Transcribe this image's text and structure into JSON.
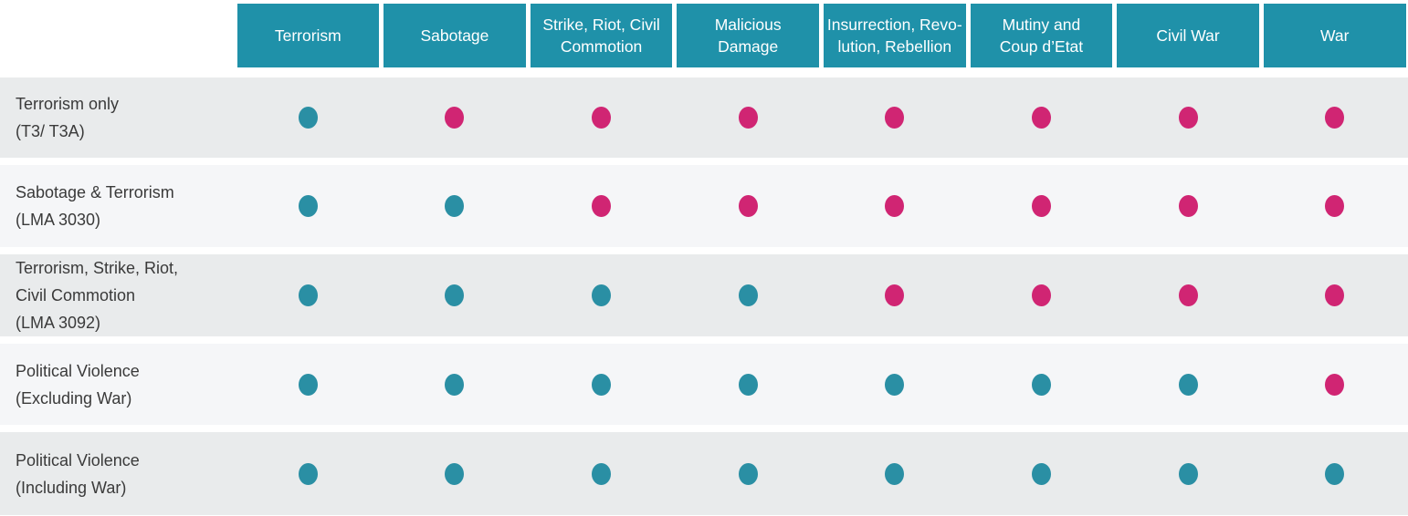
{
  "colors": {
    "header_bg": "#1f91a9",
    "header_text": "#ffffff",
    "covered_dot": "#2a8fa4",
    "not_covered_dot": "#d02573",
    "row_bg_odd": "#e9ebec",
    "row_bg_even": "#f5f6f8",
    "label_text": "#3a3a3a"
  },
  "chart_data": {
    "type": "table",
    "title": "",
    "columns": [
      "Terrorism",
      "Sabotage",
      "Strike, Riot, Civil\nCommotion",
      "Malicious\nDamage",
      "Insurrection, Revo-\nlution, Rebellion",
      "Mutiny and\nCoup d’Etat",
      "Civil War",
      "War"
    ],
    "rows": [
      {
        "label": "Terrorism only\n(T3/ T3A)",
        "covered": [
          true,
          false,
          false,
          false,
          false,
          false,
          false,
          false
        ]
      },
      {
        "label": "Sabotage & Terrorism\n(LMA 3030)",
        "covered": [
          true,
          true,
          false,
          false,
          false,
          false,
          false,
          false
        ]
      },
      {
        "label": "Terrorism, Strike, Riot,\nCivil Commotion\n(LMA 3092)",
        "covered": [
          true,
          true,
          true,
          true,
          false,
          false,
          false,
          false
        ]
      },
      {
        "label": "Political Violence\n(Excluding War)",
        "covered": [
          true,
          true,
          true,
          true,
          true,
          true,
          true,
          false
        ]
      },
      {
        "label": "Political Violence\n(Including War)",
        "covered": [
          true,
          true,
          true,
          true,
          true,
          true,
          true,
          true
        ]
      }
    ]
  }
}
